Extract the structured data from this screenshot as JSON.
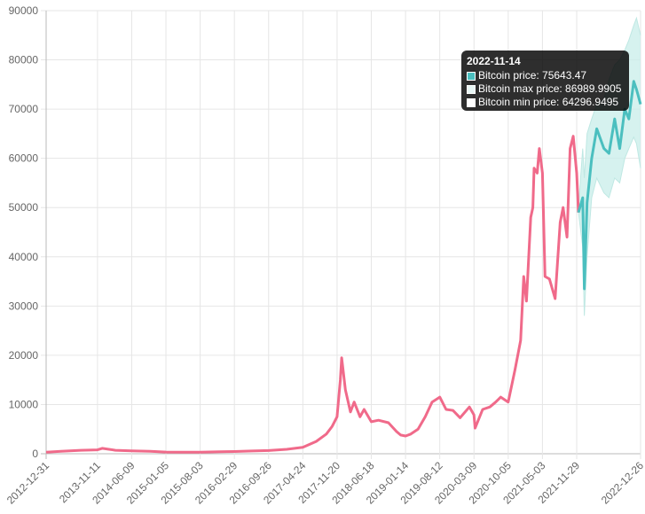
{
  "chart_data": {
    "type": "line",
    "title": "",
    "xlabel": "",
    "ylabel": "",
    "ylim": [
      0,
      90000
    ],
    "yticks": [
      0,
      10000,
      20000,
      30000,
      40000,
      50000,
      60000,
      70000,
      80000,
      90000
    ],
    "xtick_labels": [
      "2012-12-31",
      "2013-11-11",
      "2014-06-09",
      "2015-01-05",
      "2015-08-03",
      "2016-02-29",
      "2016-09-26",
      "2017-04-24",
      "2017-11-20",
      "2018-06-18",
      "2019-01-14",
      "2019-08-12",
      "2020-03-09",
      "2020-10-05",
      "2021-05-03",
      "2021-11-29",
      "2022-12-26"
    ],
    "grid": true,
    "legend": "none",
    "colors": {
      "historical": "#f06a8a",
      "forecast": "#4bbfbf",
      "band": "#c8ede9"
    },
    "series": [
      {
        "name": "Bitcoin price",
        "role": "historical",
        "x": [
          "2012-12-31",
          "2013-04-01",
          "2013-08-01",
          "2013-11-11",
          "2013-12-10",
          "2014-03-01",
          "2014-06-09",
          "2014-10-01",
          "2015-01-05",
          "2015-04-01",
          "2015-08-03",
          "2015-12-01",
          "2016-02-29",
          "2016-06-15",
          "2016-09-26",
          "2017-01-15",
          "2017-04-24",
          "2017-07-15",
          "2017-09-15",
          "2017-10-20",
          "2017-11-20",
          "2017-12-10",
          "2017-12-18",
          "2018-01-10",
          "2018-02-10",
          "2018-03-05",
          "2018-04-10",
          "2018-05-05",
          "2018-06-18",
          "2018-08-01",
          "2018-10-01",
          "2018-11-20",
          "2018-12-15",
          "2019-01-14",
          "2019-02-15",
          "2019-04-01",
          "2019-05-15",
          "2019-06-26",
          "2019-08-12",
          "2019-09-20",
          "2019-11-01",
          "2019-12-15",
          "2020-02-10",
          "2020-03-09",
          "2020-03-16",
          "2020-05-01",
          "2020-06-15",
          "2020-07-20",
          "2020-08-20",
          "2020-10-05",
          "2020-11-15",
          "2020-12-20",
          "2021-01-08",
          "2021-01-25",
          "2021-02-20",
          "2021-03-05",
          "2021-03-13",
          "2021-04-01",
          "2021-04-14",
          "2021-05-03",
          "2021-05-19",
          "2021-06-15",
          "2021-07-20",
          "2021-08-20",
          "2021-09-07",
          "2021-10-01",
          "2021-10-20",
          "2021-11-08",
          "2021-11-29",
          "2021-12-10"
        ],
        "values": [
          300,
          500,
          700,
          800,
          1100,
          700,
          600,
          500,
          350,
          300,
          300,
          400,
          450,
          550,
          650,
          900,
          1300,
          2500,
          4000,
          5500,
          7500,
          15000,
          19500,
          13000,
          8500,
          10500,
          7500,
          9000,
          6500,
          6800,
          6300,
          4500,
          3800,
          3600,
          4000,
          5000,
          7500,
          10500,
          11500,
          9000,
          8800,
          7300,
          9500,
          7900,
          5200,
          9000,
          9500,
          10500,
          11500,
          10500,
          17000,
          23000,
          36000,
          31000,
          48000,
          50000,
          58000,
          57000,
          62000,
          57000,
          36000,
          35500,
          31500,
          47000,
          50000,
          44000,
          62000,
          64500,
          57000,
          49000
        ]
      },
      {
        "name": "Bitcoin price",
        "role": "forecast",
        "x": [
          "2021-12-10",
          "2022-01-05",
          "2022-01-15",
          "2022-02-01",
          "2022-03-01",
          "2022-04-01",
          "2022-05-15",
          "2022-06-15",
          "2022-07-20",
          "2022-08-20",
          "2022-09-20",
          "2022-10-15",
          "2022-11-14",
          "2022-12-01",
          "2022-12-26"
        ],
        "values": [
          49000,
          52000,
          33500,
          51000,
          60000,
          66000,
          62000,
          61000,
          68000,
          62000,
          70000,
          68000,
          75643.47,
          74000,
          71000
        ]
      },
      {
        "name": "Bitcoin max price",
        "role": "band-upper",
        "x": [
          "2021-12-10",
          "2022-01-05",
          "2022-01-15",
          "2022-02-01",
          "2022-03-01",
          "2022-04-01",
          "2022-05-15",
          "2022-06-15",
          "2022-07-20",
          "2022-08-20",
          "2022-09-20",
          "2022-10-15",
          "2022-11-14",
          "2022-12-01",
          "2022-12-26"
        ],
        "values": [
          50000,
          62000,
          56000,
          65000,
          68000,
          71000,
          72000,
          76000,
          79000,
          80000,
          82000,
          84000,
          86989.9905,
          88500,
          85000
        ]
      },
      {
        "name": "Bitcoin min price",
        "role": "band-lower",
        "x": [
          "2021-12-10",
          "2022-01-05",
          "2022-01-15",
          "2022-02-01",
          "2022-03-01",
          "2022-04-01",
          "2022-05-15",
          "2022-06-15",
          "2022-07-20",
          "2022-08-20",
          "2022-09-20",
          "2022-10-15",
          "2022-11-14",
          "2022-12-01",
          "2022-12-26"
        ],
        "values": [
          49000,
          42000,
          28000,
          40000,
          52000,
          56000,
          53000,
          52000,
          56000,
          55000,
          60000,
          62000,
          64296.9495,
          63000,
          58000
        ]
      }
    ]
  },
  "tooltip": {
    "title": "2022-11-14",
    "rows": [
      {
        "label": "Bitcoin price: 75643.47",
        "color": "#4bbfbf"
      },
      {
        "label": "Bitcoin max price: 86989.9905",
        "color": "#e8f7f5"
      },
      {
        "label": "Bitcoin min price: 64296.9495",
        "color": "#ffffff"
      }
    ]
  }
}
